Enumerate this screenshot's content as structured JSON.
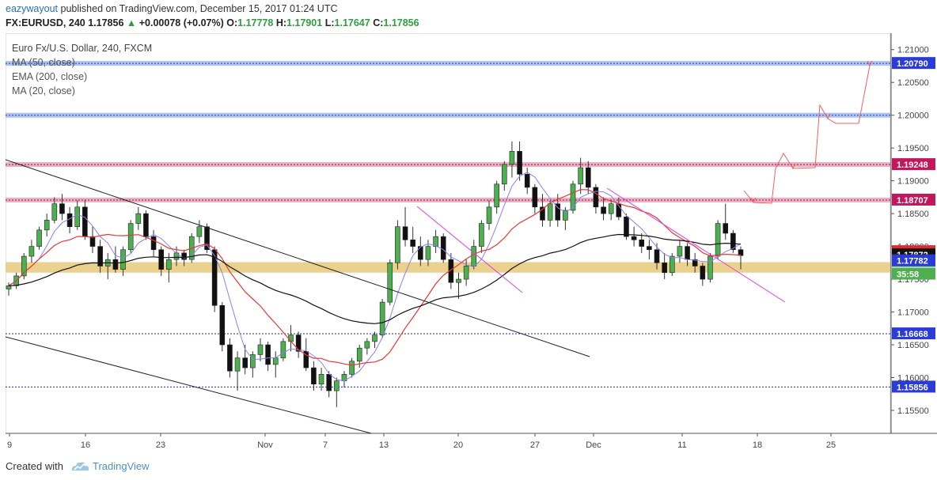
{
  "header": {
    "author": "eazywayout",
    "published_text": "published on TradingView.com, December 15, 2017 01:24 UTC",
    "symbol": "FX:EURUSD, 240",
    "last": "1.17856",
    "change": "+0.00078 (+0.07%)",
    "o_label": "O:",
    "o_value": "1.17778",
    "h_label": "H:",
    "h_value": "1.17901",
    "l_label": "L:",
    "l_value": "1.17647",
    "c_label": "C:",
    "c_value": "1.17856"
  },
  "legend": {
    "title": "Euro Fx/U.S. Dollar, 240, FXCM",
    "ma50": "MA (50, close)",
    "ema200": "EMA (200, close)",
    "ma20": "MA (20, close)"
  },
  "footer": {
    "created_with": "Created with",
    "brand": "TradingView"
  },
  "colors": {
    "bull": "#4caf50",
    "bear": "#111111",
    "ma50": "#e53935",
    "ema200": "#111111",
    "ma20": "#8a80f0",
    "resistance_pink": "#e8a0b8",
    "resistance_blue": "#9fb8ea",
    "support_band": "#e6c97a",
    "dotted_line": "#2b3bd6",
    "trendline_pink": "#e040e0",
    "projection_red": "#f06060"
  },
  "chart_data": {
    "type": "candlestick",
    "symbol": "FX:EURUSD",
    "timeframe": "240",
    "x_ticks": [
      "9",
      "16",
      "23",
      "Nov",
      "7",
      "13",
      "20",
      "27",
      "Dec",
      "11",
      "18",
      "25"
    ],
    "ylim": [
      1.1515,
      1.2125
    ],
    "y_ticks": [
      "1.21000",
      "1.20500",
      "1.20000",
      "1.19500",
      "1.19000",
      "1.18500",
      "1.18000",
      "1.17500",
      "1.17000",
      "1.16500",
      "1.16000",
      "1.15500"
    ],
    "price_tags": [
      {
        "value": 1.2079,
        "label": "1.20790",
        "style": "blue"
      },
      {
        "value": 1.19248,
        "label": "1.19248",
        "style": "pink"
      },
      {
        "value": 1.18707,
        "label": "1.18707",
        "style": "pink"
      },
      {
        "value": 1.17921,
        "label": "1.17921",
        "style": "red"
      },
      {
        "value": 1.17872,
        "label": "1.17872",
        "style": "black"
      },
      {
        "value": 1.17856,
        "label": "1.17856",
        "style": "green"
      },
      {
        "value": 1.17735,
        "label": "35:58",
        "style": "green"
      },
      {
        "value": 1.17782,
        "label": "1.17782",
        "style": "blue"
      },
      {
        "value": 1.16668,
        "label": "1.16668",
        "style": "blue"
      },
      {
        "value": 1.15856,
        "label": "1.15856",
        "style": "blue"
      }
    ],
    "horizontal_levels": [
      {
        "value": 1.2079,
        "kind": "blue-band"
      },
      {
        "value": 1.2,
        "kind": "blue-band"
      },
      {
        "value": 1.19248,
        "kind": "pink-band"
      },
      {
        "value": 1.18707,
        "kind": "pink-band"
      },
      {
        "value": 1.1776,
        "kind": "support-band-top"
      },
      {
        "value": 1.176,
        "kind": "support-band-bottom"
      },
      {
        "value": 1.16668,
        "kind": "blue-dotted"
      },
      {
        "value": 1.15856,
        "kind": "blue-dotted"
      }
    ],
    "candles_approx": [
      [
        1.1735,
        1.1745,
        1.1725,
        1.174
      ],
      [
        1.174,
        1.176,
        1.1735,
        1.1755
      ],
      [
        1.1755,
        1.179,
        1.175,
        1.1785
      ],
      [
        1.1785,
        1.181,
        1.1775,
        1.18
      ],
      [
        1.18,
        1.183,
        1.1795,
        1.1825
      ],
      [
        1.1825,
        1.185,
        1.1815,
        1.184
      ],
      [
        1.184,
        1.1875,
        1.1835,
        1.1865
      ],
      [
        1.1865,
        1.188,
        1.184,
        1.185
      ],
      [
        1.185,
        1.186,
        1.182,
        1.183
      ],
      [
        1.183,
        1.187,
        1.1825,
        1.186
      ],
      [
        1.186,
        1.187,
        1.181,
        1.1815
      ],
      [
        1.1815,
        1.183,
        1.179,
        1.18
      ],
      [
        1.18,
        1.181,
        1.176,
        1.177
      ],
      [
        1.177,
        1.179,
        1.175,
        1.178
      ],
      [
        1.178,
        1.18,
        1.176,
        1.1765
      ],
      [
        1.1765,
        1.18,
        1.1755,
        1.1795
      ],
      [
        1.1795,
        1.184,
        1.179,
        1.1835
      ],
      [
        1.1835,
        1.186,
        1.1825,
        1.185
      ],
      [
        1.185,
        1.1855,
        1.181,
        1.1815
      ],
      [
        1.1815,
        1.1825,
        1.1785,
        1.1795
      ],
      [
        1.1795,
        1.18,
        1.1755,
        1.1765
      ],
      [
        1.1765,
        1.179,
        1.1745,
        1.178
      ],
      [
        1.178,
        1.18,
        1.177,
        1.179
      ],
      [
        1.179,
        1.1795,
        1.177,
        1.178
      ],
      [
        1.178,
        1.182,
        1.1775,
        1.1815
      ],
      [
        1.1815,
        1.184,
        1.1805,
        1.183
      ],
      [
        1.183,
        1.1835,
        1.179,
        1.1795
      ],
      [
        1.1795,
        1.18,
        1.17,
        1.171
      ],
      [
        1.171,
        1.1715,
        1.164,
        1.165
      ],
      [
        1.165,
        1.166,
        1.16,
        1.161
      ],
      [
        1.161,
        1.164,
        1.158,
        1.163
      ],
      [
        1.163,
        1.165,
        1.1605,
        1.1615
      ],
      [
        1.1615,
        1.164,
        1.16,
        1.1635
      ],
      [
        1.1635,
        1.166,
        1.1625,
        1.165
      ],
      [
        1.165,
        1.1655,
        1.161,
        1.162
      ],
      [
        1.162,
        1.164,
        1.16,
        1.163
      ],
      [
        1.163,
        1.166,
        1.1625,
        1.1655
      ],
      [
        1.1655,
        1.168,
        1.164,
        1.1665
      ],
      [
        1.1665,
        1.167,
        1.163,
        1.164
      ],
      [
        1.164,
        1.166,
        1.161,
        1.1615
      ],
      [
        1.1615,
        1.1625,
        1.158,
        1.159
      ],
      [
        1.159,
        1.1615,
        1.158,
        1.1605
      ],
      [
        1.1605,
        1.161,
        1.157,
        1.158
      ],
      [
        1.158,
        1.16,
        1.1555,
        1.1595
      ],
      [
        1.1595,
        1.161,
        1.1585,
        1.1605
      ],
      [
        1.1605,
        1.163,
        1.16,
        1.1625
      ],
      [
        1.1625,
        1.165,
        1.1615,
        1.1645
      ],
      [
        1.1645,
        1.166,
        1.1635,
        1.1655
      ],
      [
        1.1655,
        1.167,
        1.1645,
        1.1665
      ],
      [
        1.1665,
        1.172,
        1.166,
        1.1715
      ],
      [
        1.1715,
        1.178,
        1.171,
        1.1775
      ],
      [
        1.1775,
        1.184,
        1.1765,
        1.183
      ],
      [
        1.183,
        1.186,
        1.18,
        1.181
      ],
      [
        1.181,
        1.183,
        1.179,
        1.18
      ],
      [
        1.18,
        1.1815,
        1.177,
        1.178
      ],
      [
        1.178,
        1.181,
        1.177,
        1.18
      ],
      [
        1.18,
        1.1825,
        1.179,
        1.1815
      ],
      [
        1.1815,
        1.182,
        1.1775,
        1.178
      ],
      [
        1.178,
        1.179,
        1.1735,
        1.1745
      ],
      [
        1.1745,
        1.176,
        1.172,
        1.175
      ],
      [
        1.175,
        1.178,
        1.174,
        1.177
      ],
      [
        1.177,
        1.181,
        1.1765,
        1.18
      ],
      [
        1.18,
        1.184,
        1.179,
        1.1835
      ],
      [
        1.1835,
        1.187,
        1.1825,
        1.186
      ],
      [
        1.186,
        1.19,
        1.185,
        1.1895
      ],
      [
        1.1895,
        1.193,
        1.1885,
        1.1925
      ],
      [
        1.1925,
        1.196,
        1.1905,
        1.1945
      ],
      [
        1.1945,
        1.196,
        1.19,
        1.191
      ],
      [
        1.191,
        1.192,
        1.188,
        1.189
      ],
      [
        1.189,
        1.1895,
        1.185,
        1.186
      ],
      [
        1.186,
        1.188,
        1.183,
        1.184
      ],
      [
        1.184,
        1.187,
        1.183,
        1.1865
      ],
      [
        1.1865,
        1.188,
        1.183,
        1.184
      ],
      [
        1.184,
        1.186,
        1.1825,
        1.1855
      ],
      [
        1.1855,
        1.19,
        1.185,
        1.1895
      ],
      [
        1.1895,
        1.1935,
        1.188,
        1.192
      ],
      [
        1.192,
        1.193,
        1.188,
        1.189
      ],
      [
        1.189,
        1.1895,
        1.185,
        1.186
      ],
      [
        1.186,
        1.1875,
        1.184,
        1.185
      ],
      [
        1.185,
        1.187,
        1.184,
        1.1865
      ],
      [
        1.1865,
        1.1875,
        1.184,
        1.1845
      ],
      [
        1.1845,
        1.185,
        1.181,
        1.1815
      ],
      [
        1.1815,
        1.183,
        1.18,
        1.181
      ],
      [
        1.181,
        1.182,
        1.179,
        1.18
      ],
      [
        1.18,
        1.181,
        1.178,
        1.1795
      ],
      [
        1.1795,
        1.1805,
        1.1765,
        1.1775
      ],
      [
        1.1775,
        1.179,
        1.175,
        1.176
      ],
      [
        1.176,
        1.179,
        1.1755,
        1.1785
      ],
      [
        1.1785,
        1.181,
        1.1775,
        1.18
      ],
      [
        1.18,
        1.1805,
        1.177,
        1.178
      ],
      [
        1.178,
        1.179,
        1.176,
        1.177
      ],
      [
        1.177,
        1.1775,
        1.174,
        1.175
      ],
      [
        1.175,
        1.179,
        1.1745,
        1.1785
      ],
      [
        1.1785,
        1.184,
        1.178,
        1.1835
      ],
      [
        1.1835,
        1.1865,
        1.181,
        1.182
      ],
      [
        1.182,
        1.1825,
        1.179,
        1.1795
      ],
      [
        1.1795,
        1.18,
        1.1765,
        1.1786
      ]
    ],
    "indicators": [
      "MA (50, close)",
      "EMA (200, close)",
      "MA (20, close)"
    ]
  }
}
